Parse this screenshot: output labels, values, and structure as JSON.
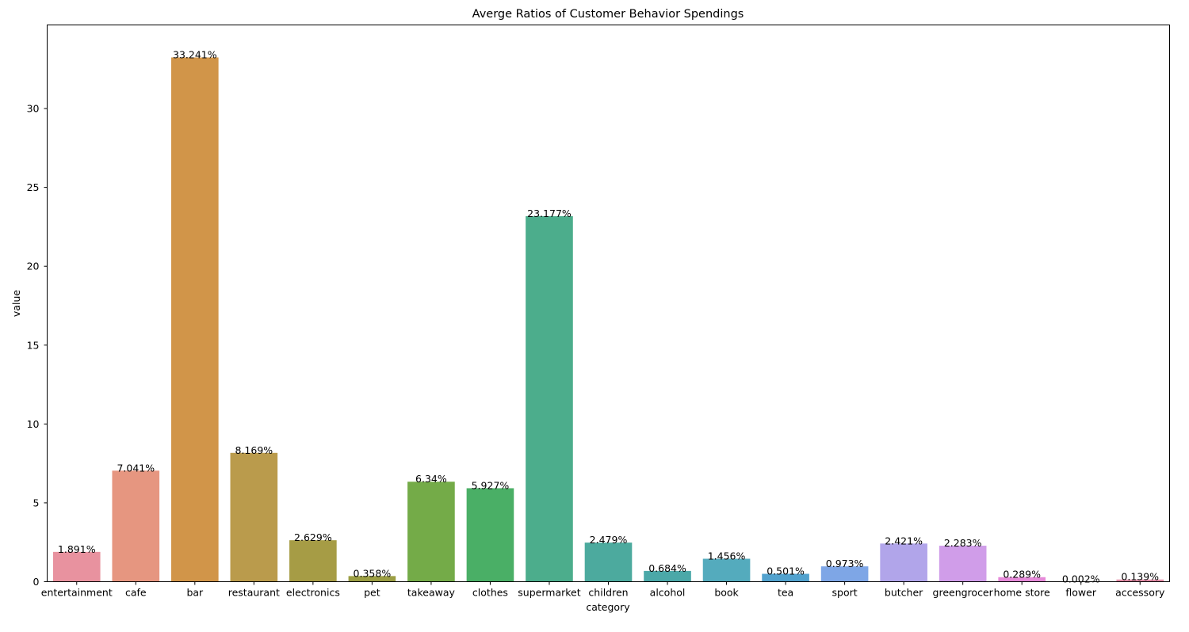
{
  "chart_data": {
    "type": "bar",
    "title": "Averge Ratios of Customer Behavior Spendings",
    "xlabel": "category",
    "ylabel": "value",
    "ylim": [
      0,
      35.3
    ],
    "yticks": [
      0,
      5,
      10,
      15,
      20,
      25,
      30
    ],
    "grid": false,
    "categories": [
      "entertainment",
      "cafe",
      "bar",
      "restaurant",
      "electronics",
      "pet",
      "takeaway",
      "clothes",
      "supermarket",
      "children",
      "alcohol",
      "book",
      "tea",
      "sport",
      "butcher",
      "greengrocer",
      "home store",
      "flower",
      "accessory"
    ],
    "values": [
      1.891,
      7.041,
      33.241,
      8.169,
      2.629,
      0.358,
      6.34,
      5.927,
      23.177,
      2.479,
      0.684,
      1.456,
      0.501,
      0.973,
      2.421,
      2.283,
      0.289,
      0.002,
      0.139
    ],
    "data_labels": [
      "1.891%",
      "7.041%",
      "33.241%",
      "8.169%",
      "2.629%",
      "0.358%",
      "6.34%",
      "5.927%",
      "23.177%",
      "2.479%",
      "0.684%",
      "1.456%",
      "0.501%",
      "0.973%",
      "2.421%",
      "2.283%",
      "0.289%",
      "0.002%",
      "0.139%"
    ],
    "colors": [
      "#e8929f",
      "#e69680",
      "#d19549",
      "#ba9b4c",
      "#a69c45",
      "#9b9e43",
      "#74ab48",
      "#4aaf66",
      "#4cad8c",
      "#4caa9e",
      "#4ba8a8",
      "#54abbd",
      "#52a2ce",
      "#7ea6e6",
      "#b1a5ea",
      "#d09de9",
      "#e68ad9",
      "#ea8ec1",
      "#e68fa9"
    ]
  }
}
